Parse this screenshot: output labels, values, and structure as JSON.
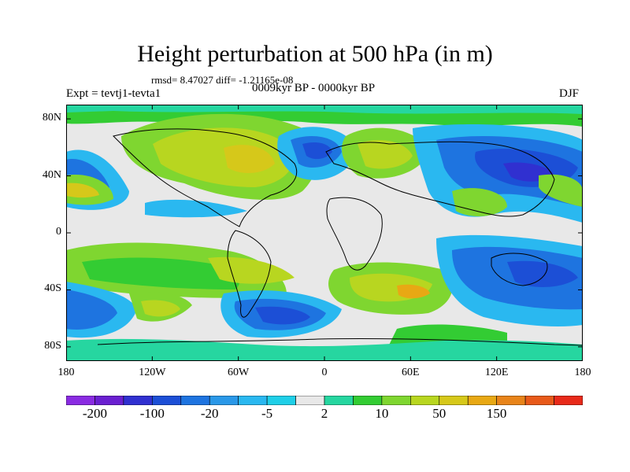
{
  "title": "Height perturbation at 500 hPa (in m)",
  "stats": "rmsd= 8.47027 diff= -1.21165e-08",
  "left_label": "Expt = tevtj1-tevta1",
  "center_label": "0009kyr BP - 0000kyr BP",
  "right_label": "DJF",
  "lat_ticks": [
    {
      "label": "80N",
      "lat": 80
    },
    {
      "label": "40N",
      "lat": 40
    },
    {
      "label": "0",
      "lat": 0
    },
    {
      "label": "40S",
      "lat": -40
    },
    {
      "label": "80S",
      "lat": -80
    }
  ],
  "lon_ticks": [
    {
      "label": "180",
      "lon": -180
    },
    {
      "label": "120W",
      "lon": -120
    },
    {
      "label": "60W",
      "lon": -60
    },
    {
      "label": "0",
      "lon": 0
    },
    {
      "label": "60E",
      "lon": 60
    },
    {
      "label": "120E",
      "lon": 120
    },
    {
      "label": "180",
      "lon": 180
    }
  ],
  "colorbar": {
    "colors": [
      "#8a2be2",
      "#6a1fd0",
      "#3030d0",
      "#1c4fd6",
      "#1e74e0",
      "#2a98e8",
      "#2ab8f0",
      "#1fcfe8",
      "#e8e8e8",
      "#26d6a0",
      "#33cc33",
      "#7fd630",
      "#b8d620",
      "#d6c81a",
      "#e8a814",
      "#e8841a",
      "#e85a1a",
      "#e82a1a"
    ],
    "labels": [
      {
        "text": "-200",
        "boundary": 1
      },
      {
        "text": "-100",
        "boundary": 3
      },
      {
        "text": "-20",
        "boundary": 5
      },
      {
        "text": "-5",
        "boundary": 7
      },
      {
        "text": "2",
        "boundary": 9
      },
      {
        "text": "10",
        "boundary": 11
      },
      {
        "text": "50",
        "boundary": 13
      },
      {
        "text": "150",
        "boundary": 15
      }
    ]
  }
}
